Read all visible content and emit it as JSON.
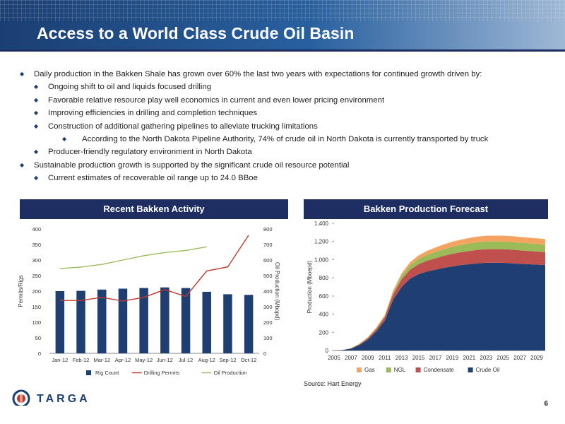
{
  "title": "Access to a World Class Crude Oil Basin",
  "bullets": [
    {
      "level": 1,
      "text": "Daily production in the Bakken Shale has grown over 60% the last two years with expectations for continued growth driven by:"
    },
    {
      "level": 2,
      "text": "Ongoing shift to oil and liquids focused drilling"
    },
    {
      "level": 2,
      "text": "Favorable relative resource play well economics in current and even lower pricing environment"
    },
    {
      "level": 2,
      "text": "Improving efficiencies in drilling and completion techniques"
    },
    {
      "level": 2,
      "text": "Construction of additional gathering pipelines to alleviate trucking limitations"
    },
    {
      "level": 3,
      "text": "According to the North Dakota Pipeline Authority, 74% of crude oil in North Dakota is currently transported by truck"
    },
    {
      "level": 2,
      "text": "Producer-friendly regulatory environment in North Dakota"
    },
    {
      "level": 1,
      "text": "Sustainable production growth is supported by the significant crude oil resource potential"
    },
    {
      "level": 2,
      "text": "Current estimates of recoverable oil range up to 24.0 BBoe"
    }
  ],
  "panels": {
    "left_title": "Recent Bakken Activity",
    "right_title": "Bakken Production Forecast"
  },
  "source": "Source: Hart Energy",
  "logo_text": "TARGA",
  "page_number": "6",
  "colors": {
    "navy": "#1e2e63",
    "bar": "#1f3f73",
    "permits": "#c0392b",
    "oil": "#9bbb59",
    "gas": "#f4a460",
    "ngl": "#9bbb59",
    "condensate": "#c0504d",
    "crude": "#1f3f73"
  },
  "chart_data": [
    {
      "type": "bar",
      "categories": [
        "Jan-12",
        "Feb-12",
        "Mar-12",
        "Apr-12",
        "May-12",
        "Jun-12",
        "Jul-12",
        "Aug-12",
        "Sep-12",
        "Oct-12"
      ],
      "ylabel": "Permits/Rigs",
      "y2label": "Oil Production (Mbopd)",
      "ylim": [
        0,
        400
      ],
      "y2lim": [
        0,
        800
      ],
      "yticks": [
        "0",
        "50",
        "100",
        "150",
        "200",
        "250",
        "300",
        "350",
        "400"
      ],
      "y2ticks": [
        "0",
        "100",
        "200",
        "300",
        "400",
        "500",
        "600",
        "700",
        "800"
      ],
      "series": [
        {
          "name": "Rig Count",
          "axis": "left",
          "type": "bar",
          "values": [
            200,
            201,
            205,
            208,
            210,
            212,
            210,
            198,
            190,
            188
          ]
        },
        {
          "name": "Drilling Permits",
          "axis": "left",
          "type": "line",
          "values": [
            170,
            170,
            180,
            168,
            180,
            205,
            183,
            265,
            278,
            380
          ]
        },
        {
          "name": "Oil Production",
          "axis": "right",
          "type": "line",
          "values": [
            545,
            555,
            572,
            600,
            628,
            648,
            662,
            685,
            null,
            null
          ]
        }
      ]
    },
    {
      "type": "area",
      "x": [
        2005,
        2006,
        2007,
        2008,
        2009,
        2010,
        2011,
        2012,
        2013,
        2014,
        2015,
        2016,
        2017,
        2018,
        2019,
        2020,
        2021,
        2022,
        2023,
        2024,
        2025,
        2026,
        2027,
        2028,
        2029,
        2030
      ],
      "xticks": [
        "2005",
        "2007",
        "2009",
        "2011",
        "2013",
        "2015",
        "2017",
        "2019",
        "2021",
        "2023",
        "2025",
        "2027",
        "2029"
      ],
      "ylabel": "Production (Mboepd)",
      "ylim": [
        0,
        1400
      ],
      "yticks": [
        "0",
        "200",
        "400",
        "600",
        "800",
        "1,000",
        "1,200",
        "1,400"
      ],
      "series": [
        {
          "name": "Crude Oil",
          "values": [
            0,
            5,
            20,
            60,
            120,
            210,
            330,
            560,
            700,
            790,
            840,
            870,
            890,
            910,
            925,
            940,
            950,
            960,
            965,
            965,
            965,
            960,
            955,
            950,
            945,
            940
          ]
        },
        {
          "name": "Condensate",
          "values": [
            0,
            1,
            3,
            8,
            15,
            25,
            35,
            60,
            85,
            100,
            110,
            118,
            125,
            132,
            138,
            142,
            146,
            148,
            150,
            150,
            150,
            150,
            148,
            146,
            144,
            142
          ]
        },
        {
          "name": "NGL",
          "values": [
            0,
            0,
            2,
            5,
            8,
            12,
            16,
            25,
            40,
            50,
            58,
            64,
            70,
            74,
            78,
            80,
            82,
            84,
            85,
            85,
            85,
            85,
            84,
            84,
            83,
            82
          ]
        },
        {
          "name": "Gas",
          "values": [
            0,
            0,
            1,
            3,
            5,
            7,
            10,
            15,
            24,
            32,
            38,
            44,
            48,
            52,
            56,
            58,
            60,
            62,
            63,
            64,
            64,
            64,
            64,
            63,
            63,
            62
          ]
        }
      ]
    }
  ]
}
